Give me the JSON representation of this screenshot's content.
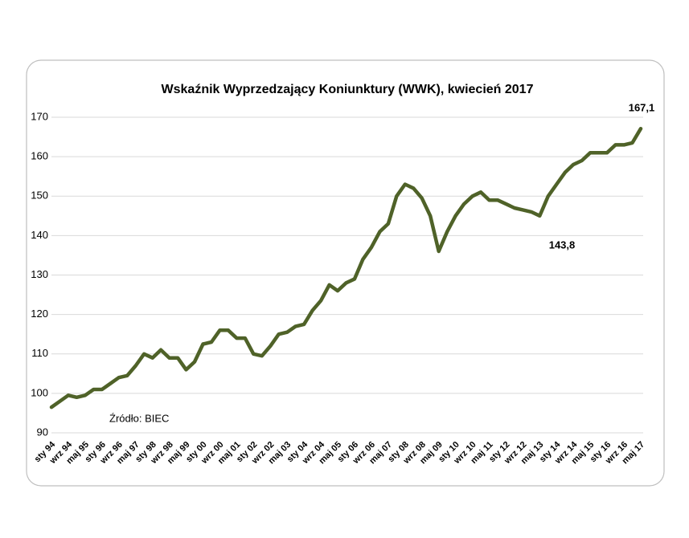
{
  "chart_data": {
    "type": "line",
    "title": "Wskaźnik Wyprzedzający Koniunktury (WWK),  kwiecień 2017",
    "categories": [
      "sty 94",
      null,
      "wrz 94",
      null,
      "maj 95",
      null,
      "sty 96",
      null,
      "wrz 96",
      null,
      "maj 97",
      null,
      "sty 98",
      null,
      "wrz 98",
      null,
      "maj 99",
      null,
      "sty 00",
      null,
      "wrz 00",
      null,
      "maj 01",
      null,
      "sty 02",
      null,
      "wrz 02",
      null,
      "maj 03",
      null,
      "sty 04",
      null,
      "wrz 04",
      null,
      "maj 05",
      null,
      "sty 06",
      null,
      "wrz 06",
      null,
      "maj 07",
      null,
      "sty 08",
      null,
      "wrz 08",
      null,
      "maj 09",
      null,
      "sty 10",
      null,
      "wrz 10",
      null,
      "maj 11",
      null,
      "sty 12",
      null,
      "wrz 12",
      null,
      "maj 13",
      null,
      "sty 14",
      null,
      "wrz 14",
      null,
      "maj 15",
      null,
      "sty 16",
      null,
      "wrz 16",
      null,
      "maj 17"
    ],
    "values": [
      96.5,
      98,
      99.5,
      99,
      99.5,
      101,
      101,
      102.5,
      104,
      104.5,
      107,
      110,
      109,
      111,
      109,
      109,
      106,
      108,
      112.5,
      113,
      116,
      116,
      114,
      114,
      110,
      109.5,
      112,
      115,
      115.5,
      117,
      117.5,
      121,
      123.5,
      127.5,
      126,
      128,
      129,
      134,
      137,
      141,
      143,
      150,
      153,
      152,
      149.5,
      145,
      136,
      141,
      145,
      148,
      150,
      151,
      149,
      149,
      148,
      147,
      146.5,
      146,
      145,
      150,
      153,
      156,
      158,
      159,
      161,
      161,
      161,
      163,
      163,
      163.5,
      167.1
    ],
    "color": "#4f6228",
    "ylim": [
      90,
      170
    ],
    "yticks": [
      90,
      100,
      110,
      120,
      130,
      140,
      150,
      160,
      170
    ],
    "grid": true,
    "annotations": [
      "167,1",
      "143,8",
      "Źródło: BIEC"
    ]
  }
}
